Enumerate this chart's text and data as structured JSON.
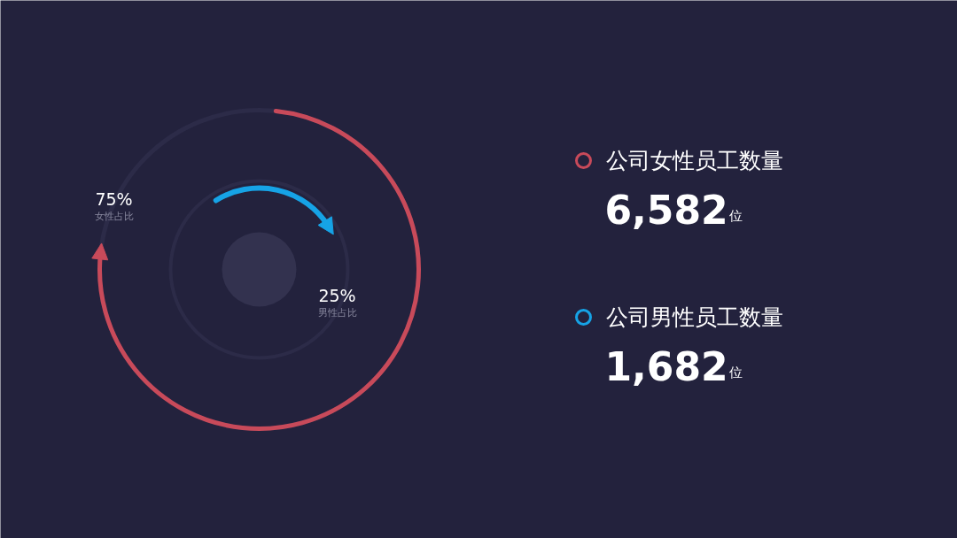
{
  "chart_data": {
    "type": "other",
    "categories": [
      "女性占比",
      "男性占比"
    ],
    "values": [
      75,
      25
    ],
    "value_labels": [
      "75%",
      "25%"
    ],
    "colors": [
      "#c84a5a",
      "#16a3e6"
    ],
    "annotations": [
      "公司女性员工数量",
      "6,582",
      "位",
      "公司男性员工数量",
      "1,682",
      "位"
    ]
  }
}
